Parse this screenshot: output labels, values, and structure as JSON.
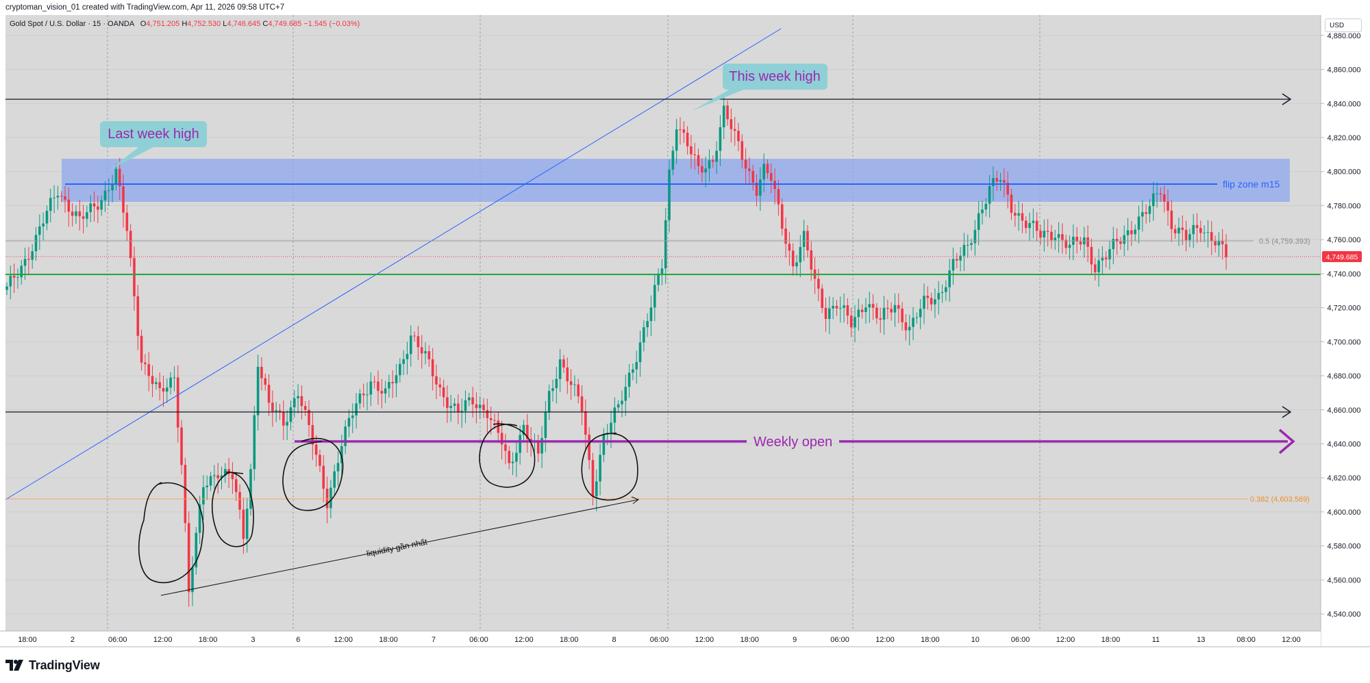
{
  "header": {
    "text": "cryptoman_vision_01 created with TradingView.com, Apr 11, 2026 09:58 UTC+7"
  },
  "legend": {
    "symbol": "Gold Spot / U.S. Dollar · 15 · OANDA",
    "o_label": "O",
    "o_value": "4,751.205",
    "h_label": "H",
    "h_value": "4,752.530",
    "l_label": "L",
    "l_value": "4,746.645",
    "c_label": "C",
    "c_value": "4,749.685",
    "change": "−1.545 (−0.03%)"
  },
  "price_axis": {
    "currency": "USD",
    "current_price_label": "4,749.685"
  },
  "footer": {
    "brand": "TradingView"
  },
  "colors": {
    "plot_bg": "#d9d9d9",
    "candle_up": "#089981",
    "candle_down": "#f23645",
    "zone_fill": "#8ea7ef",
    "flip_line": "#2962ff",
    "support_green": "#22a83a",
    "weekly_open": "#9c27b0",
    "fib_orange": "#f7a35c",
    "callout": "#8fd0d6"
  },
  "chart_data": {
    "type": "candlestick",
    "symbol": "XAUUSD",
    "timeframe": "15",
    "ylim": [
      4530,
      4892
    ],
    "y_ticks": [
      4540,
      4560,
      4580,
      4600,
      4620,
      4640,
      4660,
      4680,
      4700,
      4720,
      4740,
      4760,
      4780,
      4800,
      4820,
      4840,
      4860,
      4880
    ],
    "y_tick_labels": [
      "4,540.000",
      "4,560.000",
      "4,580.000",
      "4,600.000",
      "4,620.000",
      "4,640.000",
      "4,660.000",
      "4,680.000",
      "4,700.000",
      "4,720.000",
      "4,740.000",
      "4,760.000",
      "4,780.000",
      "4,800.000",
      "4,820.000",
      "4,840.000",
      "4,860.000",
      "4,880.000"
    ],
    "x_tick_labels": [
      "18:00",
      "2",
      "06:00",
      "12:00",
      "18:00",
      "3",
      "6",
      "12:00",
      "18:00",
      "7",
      "06:00",
      "12:00",
      "18:00",
      "8",
      "06:00",
      "12:00",
      "18:00",
      "9",
      "06:00",
      "12:00",
      "18:00",
      "10",
      "06:00",
      "12:00",
      "18:00",
      "11",
      "13",
      "08:00",
      "12:00"
    ],
    "price_path": [
      [
        0,
        4730
      ],
      [
        8,
        4760
      ],
      [
        14,
        4790
      ],
      [
        20,
        4770
      ],
      [
        26,
        4785
      ],
      [
        30,
        4798
      ],
      [
        33,
        4765
      ],
      [
        37,
        4690
      ],
      [
        42,
        4668
      ],
      [
        46,
        4680
      ],
      [
        48,
        4630
      ],
      [
        50,
        4553
      ],
      [
        54,
        4615
      ],
      [
        58,
        4625
      ],
      [
        62,
        4620
      ],
      [
        65,
        4585
      ],
      [
        67,
        4625
      ],
      [
        69,
        4690
      ],
      [
        72,
        4662
      ],
      [
        76,
        4652
      ],
      [
        80,
        4672
      ],
      [
        84,
        4640
      ],
      [
        88,
        4607
      ],
      [
        92,
        4640
      ],
      [
        96,
        4663
      ],
      [
        100,
        4678
      ],
      [
        104,
        4668
      ],
      [
        108,
        4685
      ],
      [
        111,
        4705
      ],
      [
        115,
        4690
      ],
      [
        119,
        4672
      ],
      [
        124,
        4658
      ],
      [
        128,
        4665
      ],
      [
        132,
        4660
      ],
      [
        136,
        4640
      ],
      [
        138,
        4625
      ],
      [
        142,
        4652
      ],
      [
        146,
        4632
      ],
      [
        149,
        4668
      ],
      [
        152,
        4690
      ],
      [
        155,
        4675
      ],
      [
        158,
        4660
      ],
      [
        161,
        4612
      ],
      [
        164,
        4645
      ],
      [
        168,
        4660
      ],
      [
        171,
        4680
      ],
      [
        174,
        4700
      ],
      [
        177,
        4720
      ],
      [
        180,
        4745
      ],
      [
        182,
        4800
      ],
      [
        184,
        4830
      ],
      [
        187,
        4815
      ],
      [
        190,
        4800
      ],
      [
        194,
        4808
      ],
      [
        197,
        4835
      ],
      [
        200,
        4820
      ],
      [
        203,
        4805
      ],
      [
        206,
        4790
      ],
      [
        208,
        4800
      ],
      [
        210,
        4795
      ],
      [
        213,
        4770
      ],
      [
        216,
        4745
      ],
      [
        219,
        4760
      ],
      [
        222,
        4735
      ],
      [
        225,
        4718
      ],
      [
        228,
        4722
      ],
      [
        232,
        4710
      ],
      [
        236,
        4725
      ],
      [
        240,
        4712
      ],
      [
        244,
        4722
      ],
      [
        248,
        4708
      ],
      [
        252,
        4722
      ],
      [
        256,
        4728
      ],
      [
        260,
        4745
      ],
      [
        264,
        4755
      ],
      [
        267,
        4775
      ],
      [
        270,
        4790
      ],
      [
        273,
        4795
      ],
      [
        276,
        4780
      ],
      [
        280,
        4770
      ],
      [
        284,
        4762
      ],
      [
        288,
        4765
      ],
      [
        292,
        4755
      ],
      [
        296,
        4760
      ],
      [
        299,
        4745
      ],
      [
        302,
        4750
      ],
      [
        306,
        4760
      ],
      [
        310,
        4770
      ],
      [
        314,
        4778
      ],
      [
        317,
        4790
      ],
      [
        320,
        4770
      ],
      [
        324,
        4760
      ],
      [
        328,
        4768
      ],
      [
        332,
        4760
      ],
      [
        335,
        4749.685
      ]
    ],
    "levels": [
      {
        "price": 4846,
        "style": "black-arrow"
      },
      {
        "price": 4657,
        "style": "black-arrow"
      },
      {
        "price": 4640,
        "style": "weekly-open",
        "label": "Weekly open"
      },
      {
        "price": 4793,
        "style": "flip-line",
        "label": "flip zone m15"
      },
      {
        "price": 4739,
        "style": "green"
      },
      {
        "price": 4759.393,
        "style": "fib",
        "label": "0.5 (4,759.393)"
      },
      {
        "price": 4603.569,
        "style": "fib-orange",
        "label": "0.382 (4,603.569)"
      },
      {
        "price": 4749.685,
        "style": "last-price"
      }
    ],
    "zone": {
      "from": 4783,
      "to": 4808,
      "label": "flip zone m15"
    },
    "annotations": [
      {
        "text": "Last week high"
      },
      {
        "text": "This week high"
      },
      {
        "text": "liquidity gần nhất"
      }
    ]
  }
}
